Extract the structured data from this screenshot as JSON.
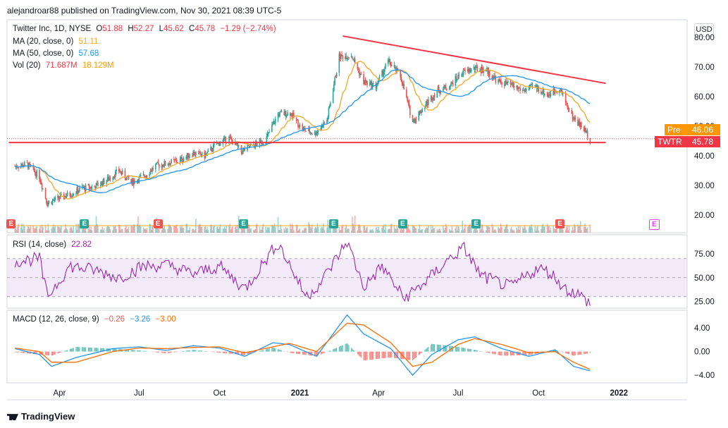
{
  "header": {
    "publisher_line": "alejandroar88 published on TradingView.com, Nov 30, 2021 08:39 UTC-5",
    "footer_logo": "TradingView"
  },
  "main_legend": {
    "symbol": "Twitter Inc, 1D, NYSE",
    "open_label": "O",
    "open": "51.88",
    "high_label": "H",
    "high": "52.27",
    "low_label": "L",
    "low": "45.62",
    "close_label": "C",
    "close": "45.78",
    "change": "−1.29 (−2.74%)",
    "ma20_label": "MA (20, close, 0)",
    "ma20_value": "51.11",
    "ma50_label": "MA (50, close, 0)",
    "ma50_value": "57.68",
    "vol_label": "Vol (20)",
    "vol_value": "71.687M",
    "vol_ma": "18.129M"
  },
  "rsi_legend": {
    "label": "RSI (14, close)",
    "value": "22.82"
  },
  "macd_legend": {
    "label": "MACD (12, 26, close, 9)",
    "hist": "−0.26",
    "macd": "−3.26",
    "signal": "−3.00"
  },
  "currency_button": "USD",
  "price_tags": {
    "pre_label": "Pre",
    "pre_value": "46.06",
    "ticker_label": "TWTR",
    "ticker_value": "45.78"
  },
  "earnings_marker_label": "E",
  "colors": {
    "up": "#26a69a",
    "down": "#ef5350",
    "ma20": "#f6a623",
    "ma50": "#2196f3",
    "trendline": "#f23645",
    "rsi": "#9c27b0",
    "rsi_band": "#e9dcf5",
    "macd": "#2196f3",
    "signal": "#ff6d00",
    "pre": "#ff9800"
  },
  "chart_data": [
    {
      "type": "candlestick",
      "title": "Twitter Inc, 1D, NYSE",
      "x_ticks": [
        "Apr",
        "Jul",
        "Oct",
        "2021",
        "Apr",
        "Jul",
        "Oct",
        "2022"
      ],
      "y_ticks": [
        20,
        30,
        40,
        50,
        60,
        70,
        80
      ],
      "ylim": [
        14,
        86
      ],
      "close_series": {
        "x": [
          "2020-02-10",
          "2020-02-24",
          "2020-03-09",
          "2020-03-18",
          "2020-03-30",
          "2020-04-13",
          "2020-04-27",
          "2020-05-11",
          "2020-05-26",
          "2020-06-08",
          "2020-06-22",
          "2020-07-06",
          "2020-07-20",
          "2020-08-03",
          "2020-08-17",
          "2020-08-31",
          "2020-09-14",
          "2020-09-28",
          "2020-10-12",
          "2020-10-26",
          "2020-11-09",
          "2020-11-23",
          "2020-12-07",
          "2020-12-21",
          "2021-01-04",
          "2021-01-18",
          "2021-02-01",
          "2021-02-15",
          "2021-03-01",
          "2021-03-15",
          "2021-03-29",
          "2021-04-12",
          "2021-04-26",
          "2021-05-10",
          "2021-05-24",
          "2021-06-07",
          "2021-06-21",
          "2021-07-05",
          "2021-07-19",
          "2021-08-02",
          "2021-08-16",
          "2021-08-30",
          "2021-09-13",
          "2021-09-27",
          "2021-10-11",
          "2021-10-25",
          "2021-11-08",
          "2021-11-22",
          "2021-11-29"
        ],
        "y": [
          36.5,
          37.0,
          33.0,
          24.0,
          25.5,
          27.0,
          29.0,
          29.5,
          32.0,
          35.0,
          31.0,
          33.0,
          36.5,
          37.5,
          38.5,
          41.0,
          40.0,
          44.0,
          46.0,
          41.5,
          43.5,
          45.5,
          54.0,
          54.5,
          49.0,
          47.5,
          52.0,
          73.5,
          74.0,
          65.0,
          63.5,
          72.0,
          67.0,
          51.5,
          57.0,
          62.0,
          63.5,
          68.0,
          69.5,
          69.0,
          65.0,
          64.0,
          62.0,
          63.5,
          60.5,
          63.0,
          53.5,
          49.0,
          45.78
        ]
      },
      "ma20_last": 51.11,
      "ma50_last": 57.68,
      "trendlines": [
        {
          "name": "descending resistance",
          "from": [
            "2021-02-19",
            80.5
          ],
          "to": [
            "2021-12-17",
            64.5
          ]
        },
        {
          "name": "horizontal support",
          "from": [
            "2020-02-03",
            44.5
          ],
          "to": [
            "2021-12-17",
            44.5
          ]
        }
      ],
      "earnings_dates": [
        "2020-02-06",
        "2020-04-30",
        "2020-07-23",
        "2020-10-29",
        "2021-02-09",
        "2021-04-29",
        "2021-07-22",
        "2021-10-26",
        "2022-02-10"
      ]
    },
    {
      "type": "line",
      "title": "RSI (14, close)",
      "y_ticks": [
        25.0,
        50.0,
        75.0
      ],
      "ylim": [
        18,
        95
      ],
      "band": [
        30,
        70
      ],
      "x": [
        "2020-02-10",
        "2020-03-09",
        "2020-03-18",
        "2020-04-13",
        "2020-05-11",
        "2020-06-08",
        "2020-07-06",
        "2020-08-03",
        "2020-09-01",
        "2020-10-01",
        "2020-10-30",
        "2020-11-20",
        "2020-12-07",
        "2021-01-08",
        "2021-01-25",
        "2021-02-24",
        "2021-03-15",
        "2021-04-05",
        "2021-04-30",
        "2021-05-24",
        "2021-06-21",
        "2021-07-08",
        "2021-07-27",
        "2021-08-30",
        "2021-09-30",
        "2021-10-15",
        "2021-11-01",
        "2021-11-15",
        "2021-11-29"
      ],
      "y": [
        67,
        70,
        30,
        62,
        58,
        50,
        62,
        63,
        54,
        62,
        38,
        65,
        87,
        30,
        45,
        88,
        40,
        62,
        28,
        45,
        70,
        81,
        52,
        40,
        60,
        55,
        38,
        33,
        22.82
      ]
    },
    {
      "type": "line",
      "title": "MACD (12, 26, close, 9)",
      "y_ticks": [
        -4.0,
        0.0,
        4.0
      ],
      "ylim": [
        -5.3,
        7.0
      ],
      "series": [
        {
          "name": "MACD",
          "x": [
            "2020-02-10",
            "2020-03-09",
            "2020-03-23",
            "2020-04-20",
            "2020-06-01",
            "2020-07-01",
            "2020-08-01",
            "2020-09-01",
            "2020-10-01",
            "2020-10-30",
            "2020-12-01",
            "2020-12-20",
            "2021-01-20",
            "2021-02-24",
            "2021-03-15",
            "2021-04-15",
            "2021-05-10",
            "2021-06-01",
            "2021-07-01",
            "2021-07-20",
            "2021-08-20",
            "2021-09-20",
            "2021-10-20",
            "2021-11-10",
            "2021-11-29"
          ],
          "y": [
            0.5,
            -0.5,
            -2.5,
            -1.0,
            0.5,
            0.8,
            0.2,
            1.0,
            0.6,
            -0.8,
            1.5,
            1.2,
            -0.8,
            6.2,
            3.0,
            0.5,
            -4.0,
            -0.5,
            2.0,
            2.5,
            0.5,
            -0.8,
            0.3,
            -2.5,
            -3.26
          ]
        },
        {
          "name": "Signal",
          "x": [
            "2020-02-10",
            "2020-03-09",
            "2020-03-23",
            "2020-04-20",
            "2020-06-01",
            "2020-07-01",
            "2020-08-01",
            "2020-09-01",
            "2020-10-01",
            "2020-10-30",
            "2020-12-01",
            "2020-12-20",
            "2021-01-20",
            "2021-02-24",
            "2021-03-15",
            "2021-04-15",
            "2021-05-10",
            "2021-06-01",
            "2021-07-01",
            "2021-07-20",
            "2021-08-20",
            "2021-09-20",
            "2021-10-20",
            "2021-11-10",
            "2021-11-29"
          ],
          "y": [
            0.6,
            0.0,
            -1.8,
            -1.8,
            0.0,
            0.6,
            0.5,
            0.7,
            0.8,
            -0.2,
            0.8,
            1.4,
            0.0,
            4.8,
            4.5,
            1.5,
            -2.5,
            -1.8,
            1.2,
            2.2,
            1.2,
            -0.2,
            0.0,
            -1.8,
            -3.0
          ]
        }
      ],
      "last_histogram": -0.26
    }
  ]
}
